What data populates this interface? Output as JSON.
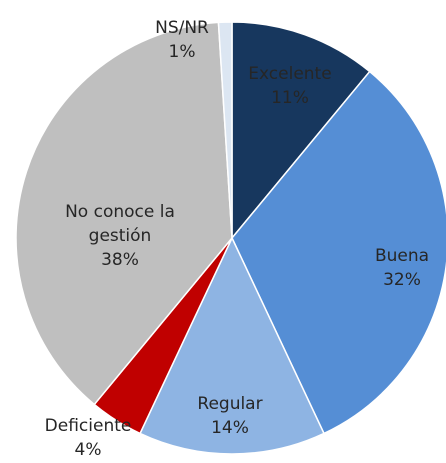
{
  "chart_data": {
    "type": "pie",
    "categories": [
      "Excelente",
      "Buena",
      "Regular",
      "Deficiente",
      "No conoce la gestión",
      "NS/NR"
    ],
    "values": [
      11,
      32,
      14,
      4,
      38,
      1
    ],
    "value_labels": [
      "11%",
      "32%",
      "14%",
      "4%",
      "38%",
      "1%"
    ],
    "colors": [
      "#17375e",
      "#558ed5",
      "#8eb4e3",
      "#c00000",
      "#bfbfbf",
      "#dce6f2"
    ]
  }
}
